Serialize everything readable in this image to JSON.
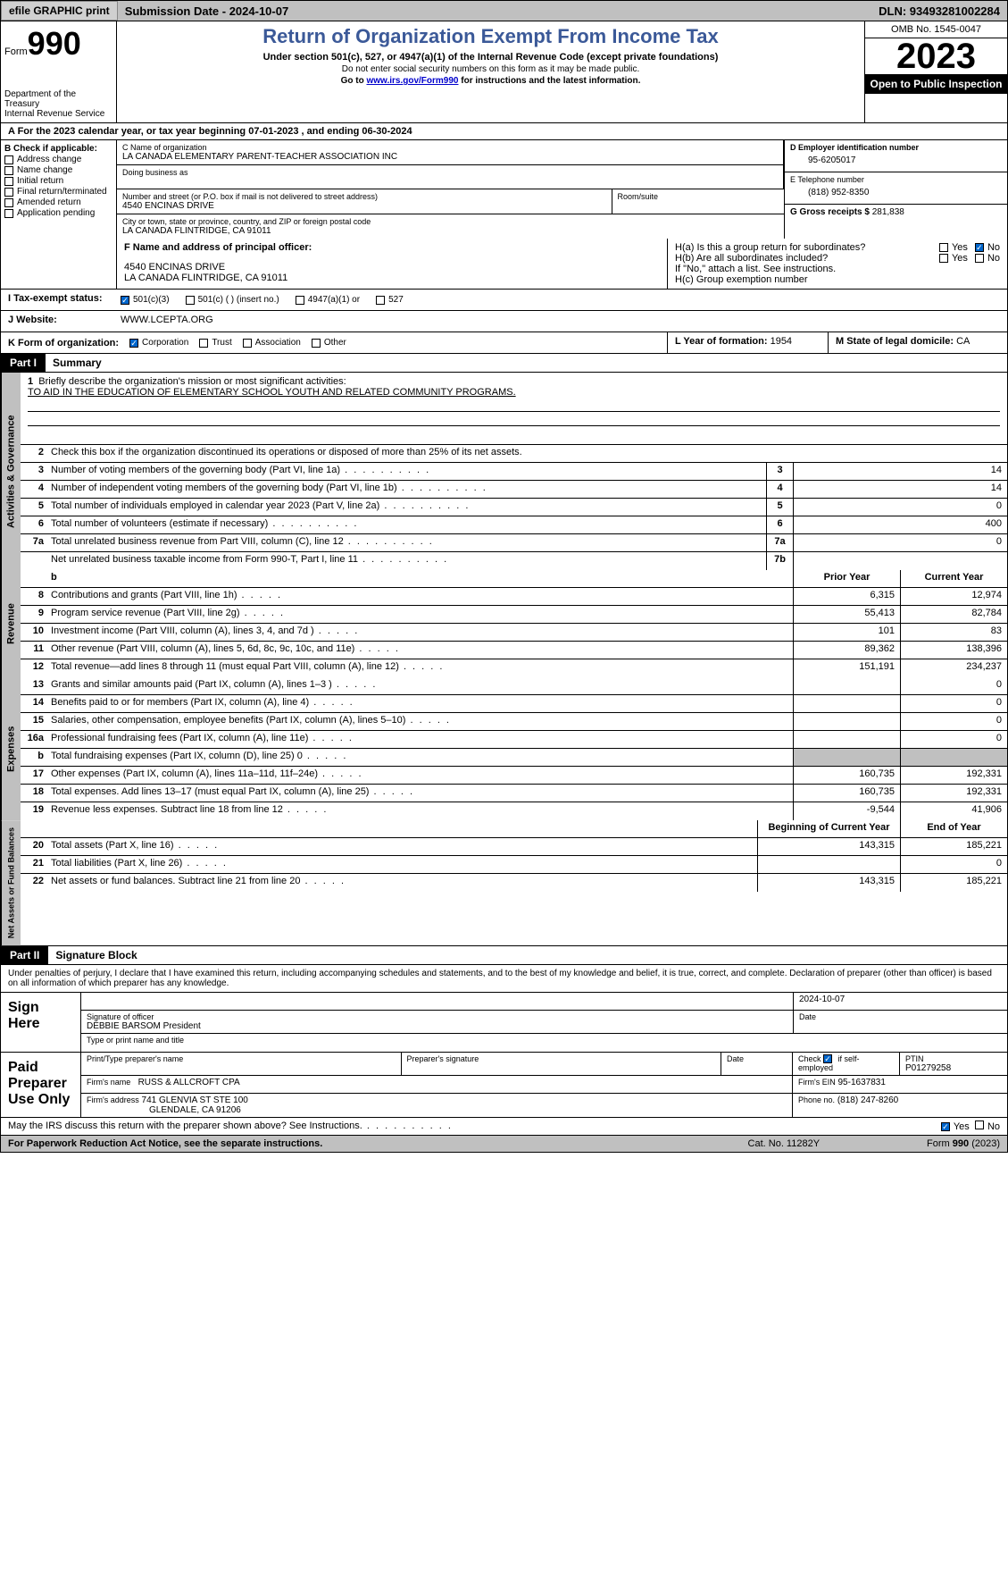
{
  "topbar": {
    "efile": "efile GRAPHIC print",
    "submission": "Submission Date - 2024-10-07",
    "dln": "DLN: 93493281002284"
  },
  "header": {
    "form_label": "Form",
    "form_num": "990",
    "dept": "Department of the Treasury",
    "irs": "Internal Revenue Service",
    "title": "Return of Organization Exempt From Income Tax",
    "subtitle": "Under section 501(c), 527, or 4947(a)(1) of the Internal Revenue Code (except private foundations)",
    "note1": "Do not enter social security numbers on this form as it may be made public.",
    "note2_pre": "Go to ",
    "note2_link": "www.irs.gov/Form990",
    "note2_post": " for instructions and the latest information.",
    "omb": "OMB No. 1545-0047",
    "year": "2023",
    "inspection": "Open to Public Inspection"
  },
  "period": {
    "text_pre": "A For the 2023 calendar year, or tax year beginning ",
    "begin": "07-01-2023",
    "mid": "  , and ending ",
    "end": "06-30-2024"
  },
  "sectionB": {
    "label": "B Check if applicable:",
    "items": [
      "Address change",
      "Name change",
      "Initial return",
      "Final return/terminated",
      "Amended return",
      "Application pending"
    ]
  },
  "sectionC": {
    "name_label": "C Name of organization",
    "name": "LA CANADA ELEMENTARY PARENT-TEACHER ASSOCIATION INC",
    "dba_label": "Doing business as",
    "street_label": "Number and street (or P.O. box if mail is not delivered to street address)",
    "street": "4540 ENCINAS DRIVE",
    "room_label": "Room/suite",
    "city_label": "City or town, state or province, country, and ZIP or foreign postal code",
    "city": "LA CANADA FLINTRIDGE, CA  91011"
  },
  "sectionD": {
    "label": "D Employer identification number",
    "value": "95-6205017"
  },
  "sectionE": {
    "label": "E Telephone number",
    "value": "(818) 952-8350"
  },
  "sectionG": {
    "label": "G Gross receipts $",
    "value": "281,838"
  },
  "sectionF": {
    "label": "F  Name and address of principal officer:",
    "line1": "4540 ENCINAS DRIVE",
    "line2": "LA CANADA FLINTRIDGE, CA  91011"
  },
  "sectionH": {
    "a": "H(a)  Is this a group return for subordinates?",
    "b": "H(b)  Are all subordinates included?",
    "b_note": "If \"No,\" attach a list. See instructions.",
    "c": "H(c)  Group exemption number",
    "yes": "Yes",
    "no": "No"
  },
  "sectionI": {
    "label": "I   Tax-exempt status:",
    "opts": [
      "501(c)(3)",
      "501(c) (  ) (insert no.)",
      "4947(a)(1) or",
      "527"
    ]
  },
  "sectionJ": {
    "label": "J   Website:",
    "value": "WWW.LCEPTA.ORG"
  },
  "sectionK": {
    "label": "K Form of organization:",
    "opts": [
      "Corporation",
      "Trust",
      "Association",
      "Other"
    ]
  },
  "sectionL": {
    "label": "L Year of formation:",
    "value": "1954"
  },
  "sectionM": {
    "label": "M State of legal domicile:",
    "value": "CA"
  },
  "partI": {
    "header": "Part I",
    "title": "Summary",
    "line1_label": "Briefly describe the organization's mission or most significant activities:",
    "line1_value": "TO AID IN THE EDUCATION OF ELEMENTARY SCHOOL YOUTH AND RELATED COMMUNITY PROGRAMS.",
    "line2": "Check this box      if the organization discontinued its operations or disposed of more than 25% of its net assets.",
    "vlabels": {
      "ag": "Activities & Governance",
      "rev": "Revenue",
      "exp": "Expenses",
      "na": "Net Assets or Fund Balances"
    },
    "col_prior": "Prior Year",
    "col_current": "Current Year",
    "col_beg": "Beginning of Current Year",
    "col_end": "End of Year",
    "rows_ag": [
      {
        "n": "3",
        "d": "Number of voting members of the governing body (Part VI, line 1a)",
        "box": "3",
        "v": "14"
      },
      {
        "n": "4",
        "d": "Number of independent voting members of the governing body (Part VI, line 1b)",
        "box": "4",
        "v": "14"
      },
      {
        "n": "5",
        "d": "Total number of individuals employed in calendar year 2023 (Part V, line 2a)",
        "box": "5",
        "v": "0"
      },
      {
        "n": "6",
        "d": "Total number of volunteers (estimate if necessary)",
        "box": "6",
        "v": "400"
      },
      {
        "n": "7a",
        "d": "Total unrelated business revenue from Part VIII, column (C), line 12",
        "box": "7a",
        "v": "0"
      },
      {
        "n": "",
        "d": "Net unrelated business taxable income from Form 990-T, Part I, line 11",
        "box": "7b",
        "v": ""
      }
    ],
    "rows_rev": [
      {
        "n": "8",
        "d": "Contributions and grants (Part VIII, line 1h)",
        "p": "6,315",
        "c": "12,974"
      },
      {
        "n": "9",
        "d": "Program service revenue (Part VIII, line 2g)",
        "p": "55,413",
        "c": "82,784"
      },
      {
        "n": "10",
        "d": "Investment income (Part VIII, column (A), lines 3, 4, and 7d )",
        "p": "101",
        "c": "83"
      },
      {
        "n": "11",
        "d": "Other revenue (Part VIII, column (A), lines 5, 6d, 8c, 9c, 10c, and 11e)",
        "p": "89,362",
        "c": "138,396"
      },
      {
        "n": "12",
        "d": "Total revenue—add lines 8 through 11 (must equal Part VIII, column (A), line 12)",
        "p": "151,191",
        "c": "234,237"
      }
    ],
    "rows_exp": [
      {
        "n": "13",
        "d": "Grants and similar amounts paid (Part IX, column (A), lines 1–3 )",
        "p": "",
        "c": "0"
      },
      {
        "n": "14",
        "d": "Benefits paid to or for members (Part IX, column (A), line 4)",
        "p": "",
        "c": "0"
      },
      {
        "n": "15",
        "d": "Salaries, other compensation, employee benefits (Part IX, column (A), lines 5–10)",
        "p": "",
        "c": "0"
      },
      {
        "n": "16a",
        "d": "Professional fundraising fees (Part IX, column (A), line 11e)",
        "p": "",
        "c": "0"
      },
      {
        "n": "b",
        "d": "Total fundraising expenses (Part IX, column (D), line 25) 0",
        "p": "SHADED",
        "c": "SHADED"
      },
      {
        "n": "17",
        "d": "Other expenses (Part IX, column (A), lines 11a–11d, 11f–24e)",
        "p": "160,735",
        "c": "192,331"
      },
      {
        "n": "18",
        "d": "Total expenses. Add lines 13–17 (must equal Part IX, column (A), line 25)",
        "p": "160,735",
        "c": "192,331"
      },
      {
        "n": "19",
        "d": "Revenue less expenses. Subtract line 18 from line 12",
        "p": "-9,544",
        "c": "41,906"
      }
    ],
    "rows_na": [
      {
        "n": "20",
        "d": "Total assets (Part X, line 16)",
        "p": "143,315",
        "c": "185,221"
      },
      {
        "n": "21",
        "d": "Total liabilities (Part X, line 26)",
        "p": "",
        "c": "0"
      },
      {
        "n": "22",
        "d": "Net assets or fund balances. Subtract line 21 from line 20",
        "p": "143,315",
        "c": "185,221"
      }
    ]
  },
  "partII": {
    "header": "Part II",
    "title": "Signature Block",
    "declaration": "Under penalties of perjury, I declare that I have examined this return, including accompanying schedules and statements, and to the best of my knowledge and belief, it is true, correct, and complete. Declaration of preparer (other than officer) is based on all information of which preparer has any knowledge.",
    "sign_here": "Sign Here",
    "paid_prep": "Paid Preparer Use Only",
    "sig_date": "2024-10-07",
    "sig_officer_label": "Signature of officer",
    "sig_officer": "DEBBIE BARSOM President",
    "sig_date_label": "Date",
    "sig_name_label": "Type or print name and title",
    "prep_name_label": "Print/Type preparer's name",
    "prep_sig_label": "Preparer's signature",
    "prep_date_label": "Date",
    "self_emp_label": "Check        if self-employed",
    "ptin_label": "PTIN",
    "ptin": "P01279258",
    "firm_name_label": "Firm's name",
    "firm_name": "RUSS & ALLCROFT CPA",
    "firm_ein_label": "Firm's EIN",
    "firm_ein": "95-1637831",
    "firm_addr_label": "Firm's address",
    "firm_addr1": "741 GLENVIA ST STE 100",
    "firm_addr2": "GLENDALE, CA  91206",
    "phone_label": "Phone no.",
    "phone": "(818) 247-8260",
    "discuss": "May the IRS discuss this return with the preparer shown above? See Instructions.",
    "yes": "Yes",
    "no": "No"
  },
  "footer": {
    "left": "For Paperwork Reduction Act Notice, see the separate instructions.",
    "mid": "Cat. No. 11282Y",
    "right_pre": "Form ",
    "right_form": "990",
    "right_post": " (2023)"
  }
}
